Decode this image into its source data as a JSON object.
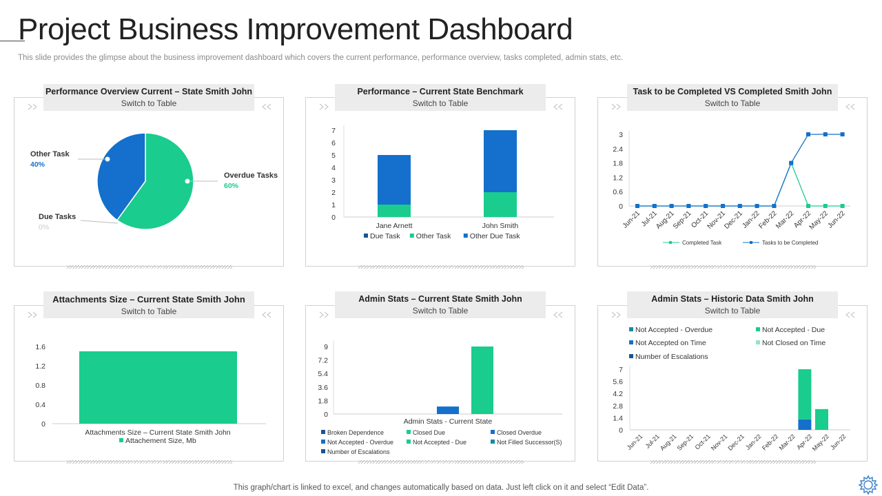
{
  "header": {
    "title": "Project Business Improvement Dashboard",
    "subtitle": "This slide provides the glimpse about the business improvement dashboard which covers the current performance, performance overview, tasks completed, admin stats, etc."
  },
  "footer": {
    "note": "This graph/chart is linked to excel,  and changes automatically based on data. Just left click on it and select “Edit Data”."
  },
  "colors": {
    "blue": "#1470CC",
    "green": "#1ACC8D",
    "dark_blue": "#1A5490",
    "teal": "#158C9E",
    "light_green": "#8FE6CC",
    "gray_text": "#8a8a8a"
  },
  "panels": [
    {
      "title": "Performance Overview Current – State Smith John",
      "link": "Switch to Table"
    },
    {
      "title": "Performance – Current State Benchmark",
      "link": "Switch to Table"
    },
    {
      "title": "Task to be Completed VS Completed Smith John",
      "link": "Switch to Table"
    },
    {
      "title": "Attachments Size – Current State Smith John",
      "link": "Switch to Table"
    },
    {
      "title": "Admin Stats  – Current State Smith  John",
      "link": "Switch to Table"
    },
    {
      "title": "Admin Stats  – Historic Data Smith John",
      "link": "Switch to Table"
    }
  ],
  "chart_data": [
    {
      "type": "pie",
      "slices": [
        {
          "label": "Overdue Tasks",
          "value": 60,
          "value_label": "60%",
          "color": "#1ACC8D"
        },
        {
          "label": "Other Task",
          "value": 40,
          "value_label": "40%",
          "color": "#1470CC"
        },
        {
          "label": "Due Tasks",
          "value": 0,
          "value_label": "0%",
          "color": "#c9c9c9"
        }
      ]
    },
    {
      "type": "bar",
      "stacked": true,
      "categories": [
        "Jane Arnett",
        "John Smith"
      ],
      "series": [
        {
          "name": "Due Task",
          "values": [
            0,
            0
          ],
          "color": "#1A5490"
        },
        {
          "name": "Other Task",
          "values": [
            1,
            2
          ],
          "color": "#1ACC8D"
        },
        {
          "name": "Other Due Task",
          "values": [
            4,
            5
          ],
          "color": "#1470CC"
        }
      ],
      "yticks": [
        "0",
        "1",
        "2",
        "3",
        "4",
        "5",
        "6",
        "7"
      ],
      "ylim": [
        0,
        7
      ]
    },
    {
      "type": "line",
      "categories": [
        "Jun-21",
        "Jul-21",
        "Aug-21",
        "Sep-21",
        "Oct-21",
        "Nov-21",
        "Dec-21",
        "Jan-22",
        "Feb-22",
        "Mar-22",
        "Apr-22",
        "May-22",
        "Jun-22"
      ],
      "series": [
        {
          "name": "Completed Task",
          "values": [
            0,
            0,
            0,
            0,
            0,
            0,
            0,
            0,
            0,
            1.8,
            0,
            0,
            0
          ],
          "color": "#1ACC8D"
        },
        {
          "name": "Tasks to be Completed",
          "values": [
            0,
            0,
            0,
            0,
            0,
            0,
            0,
            0,
            0,
            1.8,
            3,
            3,
            3
          ],
          "color": "#1470CC"
        }
      ],
      "yticks": [
        "0",
        "0.6",
        "1.2",
        "1.8",
        "2.4",
        "3"
      ],
      "ylim": [
        0,
        3
      ]
    },
    {
      "type": "bar",
      "categories": [
        "Attachments Size – Current State Smith  John"
      ],
      "series": [
        {
          "name": "Attachement Size, Mb",
          "values": [
            1.5
          ],
          "color": "#1ACC8D"
        }
      ],
      "yticks": [
        "0",
        "0.4",
        "0.8",
        "1.2",
        "1.6"
      ],
      "ylim": [
        0,
        1.6
      ]
    },
    {
      "type": "bar",
      "categories": [
        "Admin Stats - Current State"
      ],
      "series": [
        {
          "name": "Broken Dependence",
          "values": [
            0
          ],
          "color": "#1A5490"
        },
        {
          "name": "Closed Due",
          "values": [
            0
          ],
          "color": "#1ACC8D"
        },
        {
          "name": "Closed Overdue",
          "values": [
            0
          ],
          "color": "#1470CC"
        },
        {
          "name": "Not Accepted - Overdue",
          "values": [
            0
          ],
          "color": "#1470CC"
        },
        {
          "name": "Not Accepted - Due",
          "values": [
            1
          ],
          "color": "#1470CC"
        },
        {
          "name": "Not Filled Successor(S)",
          "values": [
            9
          ],
          "color": "#1ACC8D"
        },
        {
          "name": "Number of Escalations",
          "values": [
            0
          ],
          "color": "#1A5490"
        }
      ],
      "legend_colors": [
        "#1A5490",
        "#1ACC8D",
        "#1470CC",
        "#1470CC",
        "#1ACC8D",
        "#158C9E",
        "#1A5490"
      ],
      "yticks": [
        "0",
        "1.8",
        "3.6",
        "5.4",
        "7.2",
        "9"
      ],
      "ylim": [
        0,
        9
      ]
    },
    {
      "type": "bar",
      "stacked": true,
      "categories": [
        "Jun-21",
        "Jul-21",
        "Aug-21",
        "Sep-21",
        "Oct-21",
        "Nov-21",
        "Dec-21",
        "Jan-22",
        "Feb-22",
        "Mar-22",
        "Apr-22",
        "May-22",
        "Jun-22"
      ],
      "series": [
        {
          "name": "Not Accepted - Overdue",
          "values": [
            0,
            0,
            0,
            0,
            0,
            0,
            0,
            0,
            0,
            0,
            0,
            0,
            0
          ],
          "color": "#158C9E"
        },
        {
          "name": "Not Accepted - Due",
          "values": [
            0,
            0,
            0,
            0,
            0,
            0,
            0,
            0,
            0,
            5.8,
            2.4,
            0,
            0
          ],
          "color": "#1ACC8D"
        },
        {
          "name": "Not Accepted on Time",
          "values": [
            0,
            0,
            0,
            0,
            0,
            0,
            0,
            0,
            0,
            1.2,
            0,
            0,
            0
          ],
          "color": "#1470CC"
        },
        {
          "name": "Not Closed on Time",
          "values": [
            0,
            0,
            0,
            0,
            0,
            0,
            0,
            0,
            0,
            0,
            0,
            0,
            0
          ],
          "color": "#8FE6CC"
        },
        {
          "name": "Number of Escalations",
          "values": [
            0,
            0,
            0,
            0,
            0,
            0,
            0,
            0,
            0,
            0,
            0,
            0,
            0
          ],
          "color": "#1A5490"
        }
      ],
      "yticks": [
        "0",
        "1.4",
        "2.8",
        "4.2",
        "5.6",
        "7"
      ],
      "ylim": [
        0,
        7
      ]
    }
  ]
}
